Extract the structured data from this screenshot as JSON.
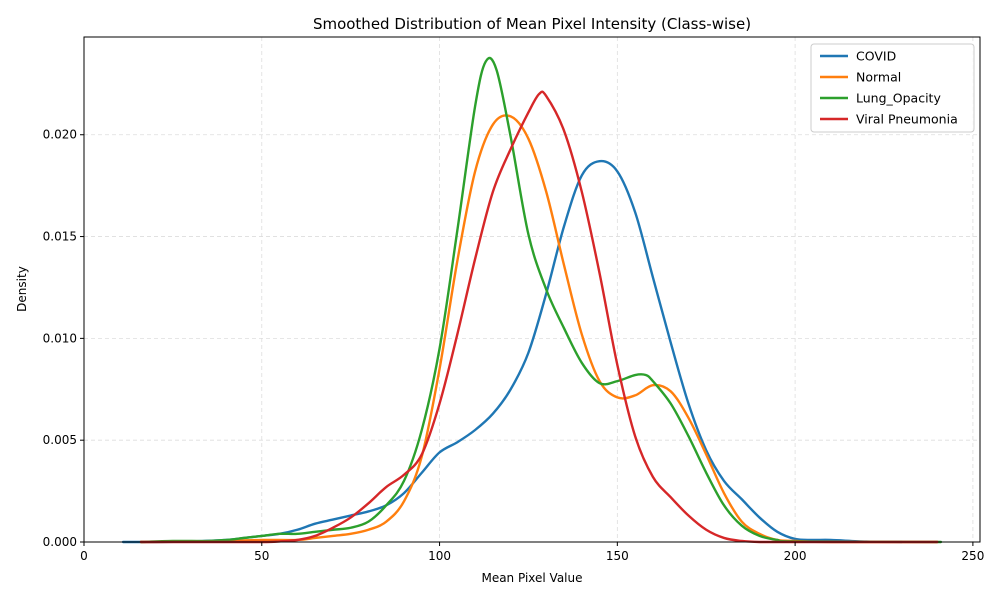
{
  "chart_data": {
    "type": "line",
    "title": "Smoothed Distribution of Mean Pixel Intensity (Class-wise)",
    "xlabel": "Mean Pixel Value",
    "ylabel": "Density",
    "xlim": [
      0,
      252
    ],
    "ylim": [
      0,
      0.0248
    ],
    "xticks": [
      0,
      50,
      100,
      150,
      200,
      250
    ],
    "yticks": [
      0,
      0.005,
      0.01,
      0.015,
      0.02
    ],
    "xtick_labels": [
      "0",
      "50",
      "100",
      "150",
      "200",
      "250"
    ],
    "ytick_labels": [
      "0.000",
      "0.005",
      "0.010",
      "0.015",
      "0.020"
    ],
    "grid": true,
    "legend_position": "top-right",
    "series": [
      {
        "name": "COVID",
        "color": "#1f77b4",
        "x": [
          11,
          20,
          30,
          40,
          45,
          50,
          55,
          60,
          65,
          70,
          75,
          80,
          85,
          90,
          95,
          100,
          105,
          110,
          115,
          120,
          125,
          130,
          135,
          140,
          145,
          150,
          155,
          160,
          165,
          170,
          175,
          180,
          185,
          190,
          195,
          200,
          205,
          210,
          220,
          230
        ],
        "y": [
          0,
          0,
          3e-05,
          0.0001,
          0.0002,
          0.0003,
          0.0004,
          0.0006,
          0.0009,
          0.0011,
          0.0013,
          0.0015,
          0.0018,
          0.0024,
          0.0034,
          0.0044,
          0.0049,
          0.0055,
          0.0063,
          0.0075,
          0.0093,
          0.0122,
          0.0155,
          0.018,
          0.0187,
          0.0182,
          0.0162,
          0.013,
          0.0098,
          0.0068,
          0.0045,
          0.003,
          0.0021,
          0.0012,
          0.0005,
          0.00015,
          0.0001,
          0.0001,
          2e-05,
          0
        ]
      },
      {
        "name": "Normal",
        "color": "#ff7f0e",
        "x": [
          16,
          30,
          40,
          50,
          60,
          65,
          70,
          75,
          80,
          85,
          90,
          95,
          100,
          105,
          110,
          115,
          120,
          125,
          130,
          135,
          140,
          145,
          150,
          155,
          160,
          165,
          170,
          175,
          180,
          185,
          190,
          195,
          200,
          210,
          240
        ],
        "y": [
          0,
          2e-05,
          5e-05,
          0.0001,
          0.0001,
          0.0002,
          0.0003,
          0.0004,
          0.0006,
          0.001,
          0.002,
          0.0042,
          0.0085,
          0.0138,
          0.0182,
          0.0205,
          0.0209,
          0.0198,
          0.0172,
          0.0136,
          0.0102,
          0.0079,
          0.0071,
          0.0072,
          0.0077,
          0.0074,
          0.0061,
          0.0043,
          0.0024,
          0.001,
          0.0004,
          0.0001,
          5e-05,
          0,
          0
        ]
      },
      {
        "name": "Lung_Opacity",
        "color": "#2ca02c",
        "x": [
          16,
          25,
          35,
          40,
          45,
          50,
          55,
          60,
          65,
          70,
          75,
          80,
          85,
          90,
          95,
          100,
          105,
          110,
          113,
          116,
          120,
          125,
          130,
          135,
          140,
          145,
          150,
          155,
          158,
          160,
          165,
          170,
          175,
          180,
          185,
          190,
          195,
          200,
          241
        ],
        "y": [
          0,
          5e-05,
          5e-05,
          0.0001,
          0.0002,
          0.0003,
          0.0004,
          0.0004,
          0.0005,
          0.0006,
          0.0007,
          0.001,
          0.0018,
          0.003,
          0.0055,
          0.0095,
          0.0153,
          0.0214,
          0.0236,
          0.0232,
          0.0199,
          0.0151,
          0.0124,
          0.0105,
          0.0088,
          0.0078,
          0.0079,
          0.0082,
          0.0082,
          0.0079,
          0.0068,
          0.0052,
          0.0034,
          0.0018,
          0.0008,
          0.0003,
          0.0001,
          3e-05,
          0
        ]
      },
      {
        "name": "Viral Pneumonia",
        "color": "#d62728",
        "x": [
          16,
          30,
          50,
          55,
          60,
          65,
          70,
          75,
          80,
          85,
          90,
          95,
          100,
          105,
          110,
          115,
          120,
          125,
          128,
          130,
          135,
          140,
          145,
          150,
          155,
          160,
          165,
          170,
          175,
          180,
          185,
          190,
          200,
          240
        ],
        "y": [
          0,
          0,
          0,
          3e-05,
          0.0001,
          0.0003,
          0.0007,
          0.0012,
          0.0019,
          0.0027,
          0.0033,
          0.0043,
          0.0068,
          0.0102,
          0.0139,
          0.0172,
          0.0193,
          0.0211,
          0.022,
          0.0219,
          0.0202,
          0.0172,
          0.0132,
          0.0087,
          0.0052,
          0.0032,
          0.0022,
          0.0013,
          0.0006,
          0.0002,
          5e-05,
          0,
          0,
          0
        ]
      }
    ]
  }
}
